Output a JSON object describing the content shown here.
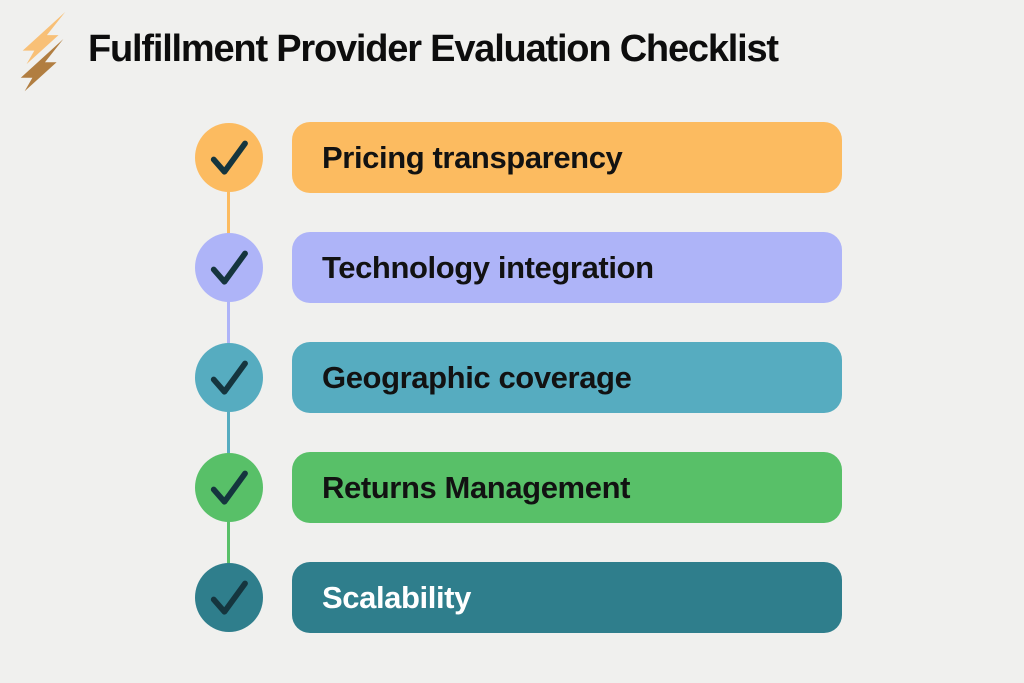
{
  "canvas": {
    "background": "#F0F0EE"
  },
  "header": {
    "title": "Fulfillment Provider Evaluation Checklist",
    "title_color": "#0D0D0D",
    "bolt_icon": "lightning-bolt-icon",
    "bolt_light_color": "#F8C077",
    "bolt_dark_color": "#B17E41"
  },
  "checklist": {
    "check_icon": "check-icon",
    "check_color": "#15353E",
    "items": [
      {
        "label": "Pricing transparency",
        "color": "#FCBB60",
        "text_color": "#121212"
      },
      {
        "label": "Technology integration",
        "color": "#AEB4F8",
        "text_color": "#121212"
      },
      {
        "label": "Geographic coverage",
        "color": "#56ACC0",
        "text_color": "#121212"
      },
      {
        "label": "Returns Management",
        "color": "#58C068",
        "text_color": "#121212"
      },
      {
        "label": "Scalability",
        "color": "#2F7E8C",
        "text_color": "#FFFFFF"
      }
    ]
  }
}
